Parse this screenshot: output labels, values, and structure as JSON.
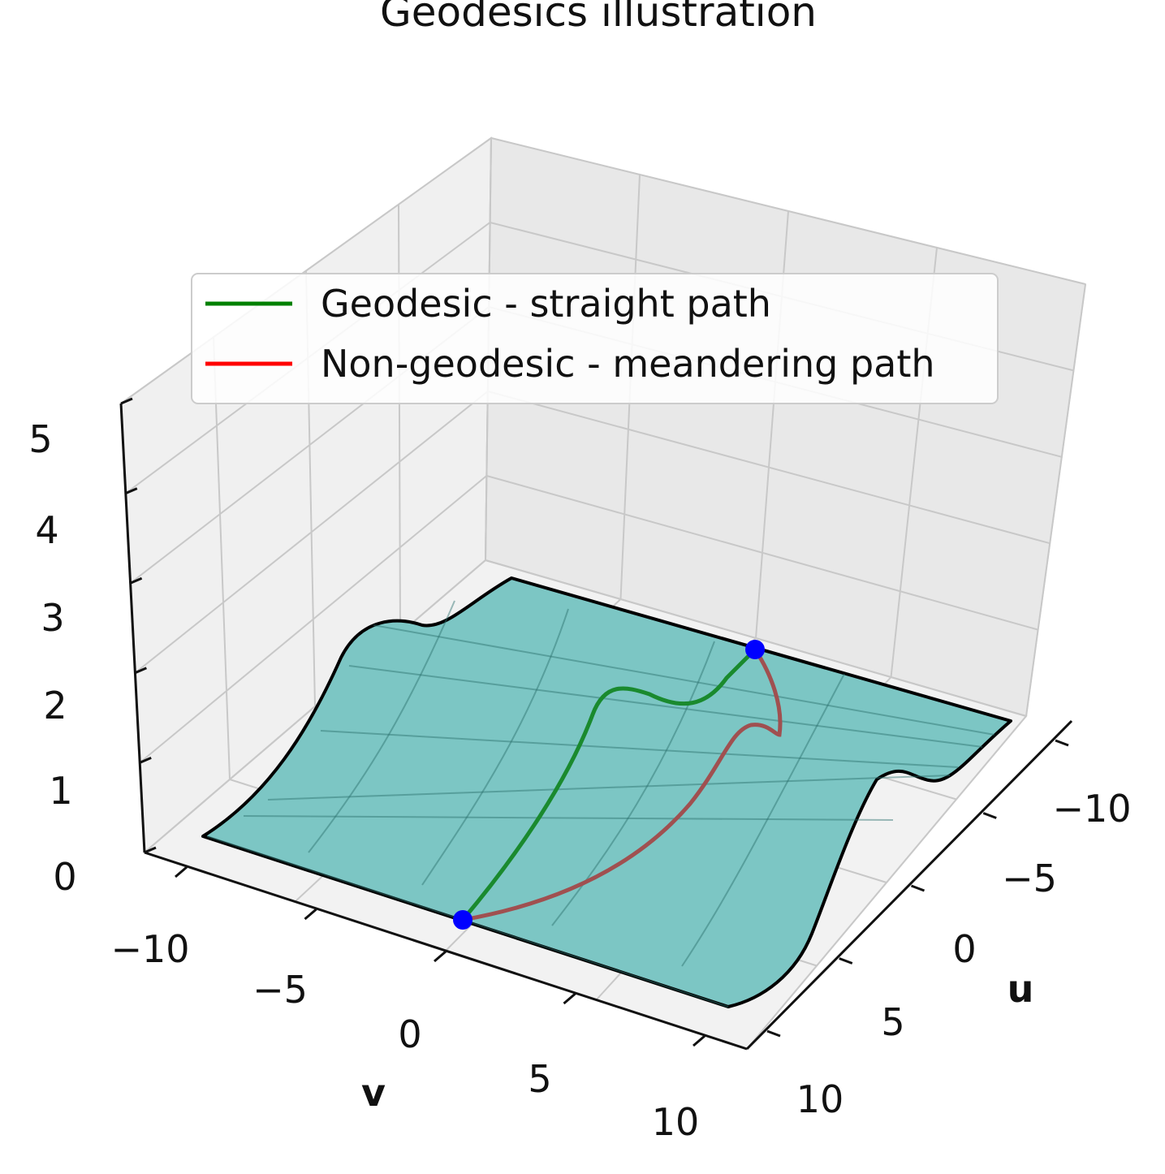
{
  "chart_data": {
    "type": "surface3d",
    "title": "Geodesics illustration",
    "xlabel": "u",
    "ylabel": "v",
    "zlabel": "",
    "xlim": [
      -10,
      10
    ],
    "ylim": [
      -10,
      10
    ],
    "zlim": [
      0,
      5
    ],
    "x_ticks": [
      "−10",
      "−5",
      "0",
      "5",
      "10"
    ],
    "y_ticks": [
      "−10",
      "−5",
      "0",
      "5",
      "10"
    ],
    "z_ticks": [
      "0",
      "1",
      "2",
      "3",
      "4",
      "5"
    ],
    "grid": true,
    "legend_position": "upper-center",
    "surface": {
      "color": "#7cc6c4",
      "edge_color": "#000000",
      "z_range": [
        0.3,
        2.1
      ],
      "description_profile_along_u": [
        {
          "u": -10,
          "z": 0.3
        },
        {
          "u": -3,
          "z": 0.3
        },
        {
          "u": -1,
          "z": 1.2
        },
        {
          "u": 1,
          "z": 2.0
        },
        {
          "u": 3,
          "z": 1.7
        },
        {
          "u": 6,
          "z": 2.0
        },
        {
          "u": 10,
          "z": 2.0
        }
      ]
    },
    "series": [
      {
        "name": "Geodesic - straight path",
        "color": "#1a8a2e",
        "start": {
          "u": 10,
          "v": 0
        },
        "end": {
          "u": -10,
          "v": 0
        }
      },
      {
        "name": "Non-geodesic - meandering path",
        "color": "#a05050",
        "start": {
          "u": 10,
          "v": 0
        },
        "end": {
          "u": -10,
          "v": 0
        }
      }
    ],
    "legend_colors": [
      "#008000",
      "#ff0000"
    ],
    "point_color": "#0000ff"
  }
}
